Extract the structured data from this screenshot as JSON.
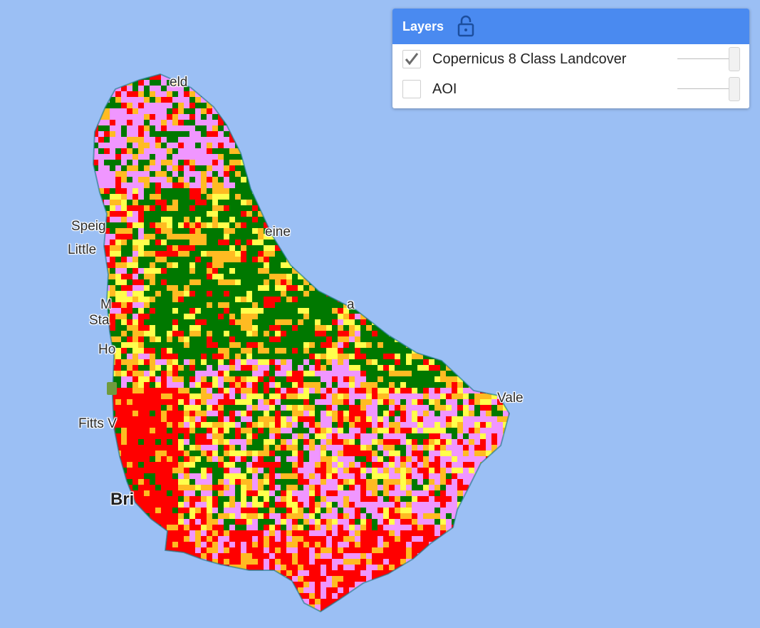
{
  "map": {
    "ocean_color": "#9bbff4",
    "land_cover_colors": {
      "tree_cover": "#007800",
      "cropland": "#ff0000",
      "urban": "#f096ff",
      "shrubland": "#ffbb22",
      "herbaceous": "#ffff4c",
      "wetland": "#0096a0"
    },
    "place_labels": [
      {
        "text": "eld"
      },
      {
        "text": "Speig"
      },
      {
        "text": "Little"
      },
      {
        "text": "eine"
      },
      {
        "text": "M"
      },
      {
        "text": "Sta"
      },
      {
        "text": "Ho"
      },
      {
        "text": "a"
      },
      {
        "text": "Vale"
      },
      {
        "text": "Fitts V"
      },
      {
        "text": "Bri"
      }
    ]
  },
  "layers_panel": {
    "title": "Layers",
    "lock_icon": "lock-open-icon",
    "header_color": "#4a8af0",
    "layers": [
      {
        "name": "Copernicus 8 Class Landcover",
        "checked": true,
        "opacity": 1.0
      },
      {
        "name": "AOI",
        "checked": false,
        "opacity": 1.0
      }
    ]
  }
}
